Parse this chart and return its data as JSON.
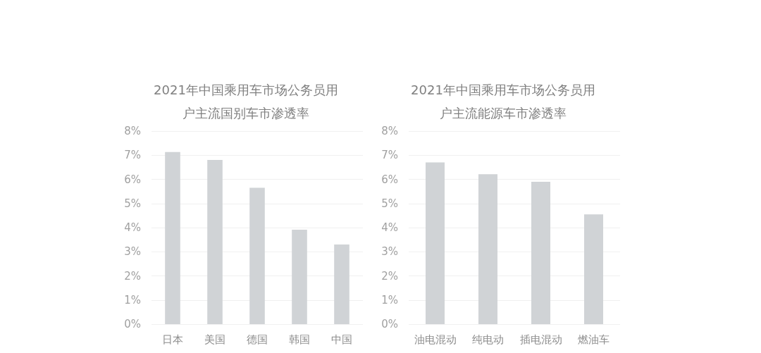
{
  "chart_data": [
    {
      "type": "bar",
      "title": "2021年中国乘用车市场公务员用户主流国别车市渗透率",
      "categories": [
        "日本",
        "美国",
        "德国",
        "韩国",
        "中国"
      ],
      "values": [
        7.13,
        6.8,
        5.65,
        3.91,
        3.3
      ],
      "color": "#d0d3d6",
      "ylim": [
        0,
        8
      ],
      "yticks": [
        {
          "value": 0,
          "label": "0%"
        },
        {
          "value": 1,
          "label": "1%"
        },
        {
          "value": 2,
          "label": "2%"
        },
        {
          "value": 3,
          "label": "3%"
        },
        {
          "value": 4,
          "label": "4%"
        },
        {
          "value": 5,
          "label": "5%"
        },
        {
          "value": 6,
          "label": "6%"
        },
        {
          "value": 7,
          "label": "7%"
        },
        {
          "value": 8,
          "label": "8%"
        }
      ],
      "grid": "y"
    },
    {
      "type": "bar",
      "title": "2021年中国乘用车市场公务员用户主流能源车市渗透率",
      "categories": [
        "油电混动",
        "纯电动",
        "插电混动",
        "燃油车"
      ],
      "values": [
        6.7,
        6.21,
        5.9,
        4.55
      ],
      "color": "#d0d3d6",
      "ylim": [
        0,
        8
      ],
      "yticks": [
        {
          "value": 0,
          "label": "0%"
        },
        {
          "value": 1,
          "label": "1%"
        },
        {
          "value": 2,
          "label": "2%"
        },
        {
          "value": 3,
          "label": "3%"
        },
        {
          "value": 4,
          "label": "4%"
        },
        {
          "value": 5,
          "label": "5%"
        },
        {
          "value": 6,
          "label": "6%"
        },
        {
          "value": 7,
          "label": "7%"
        },
        {
          "value": 8,
          "label": "8%"
        }
      ],
      "grid": "y"
    }
  ]
}
